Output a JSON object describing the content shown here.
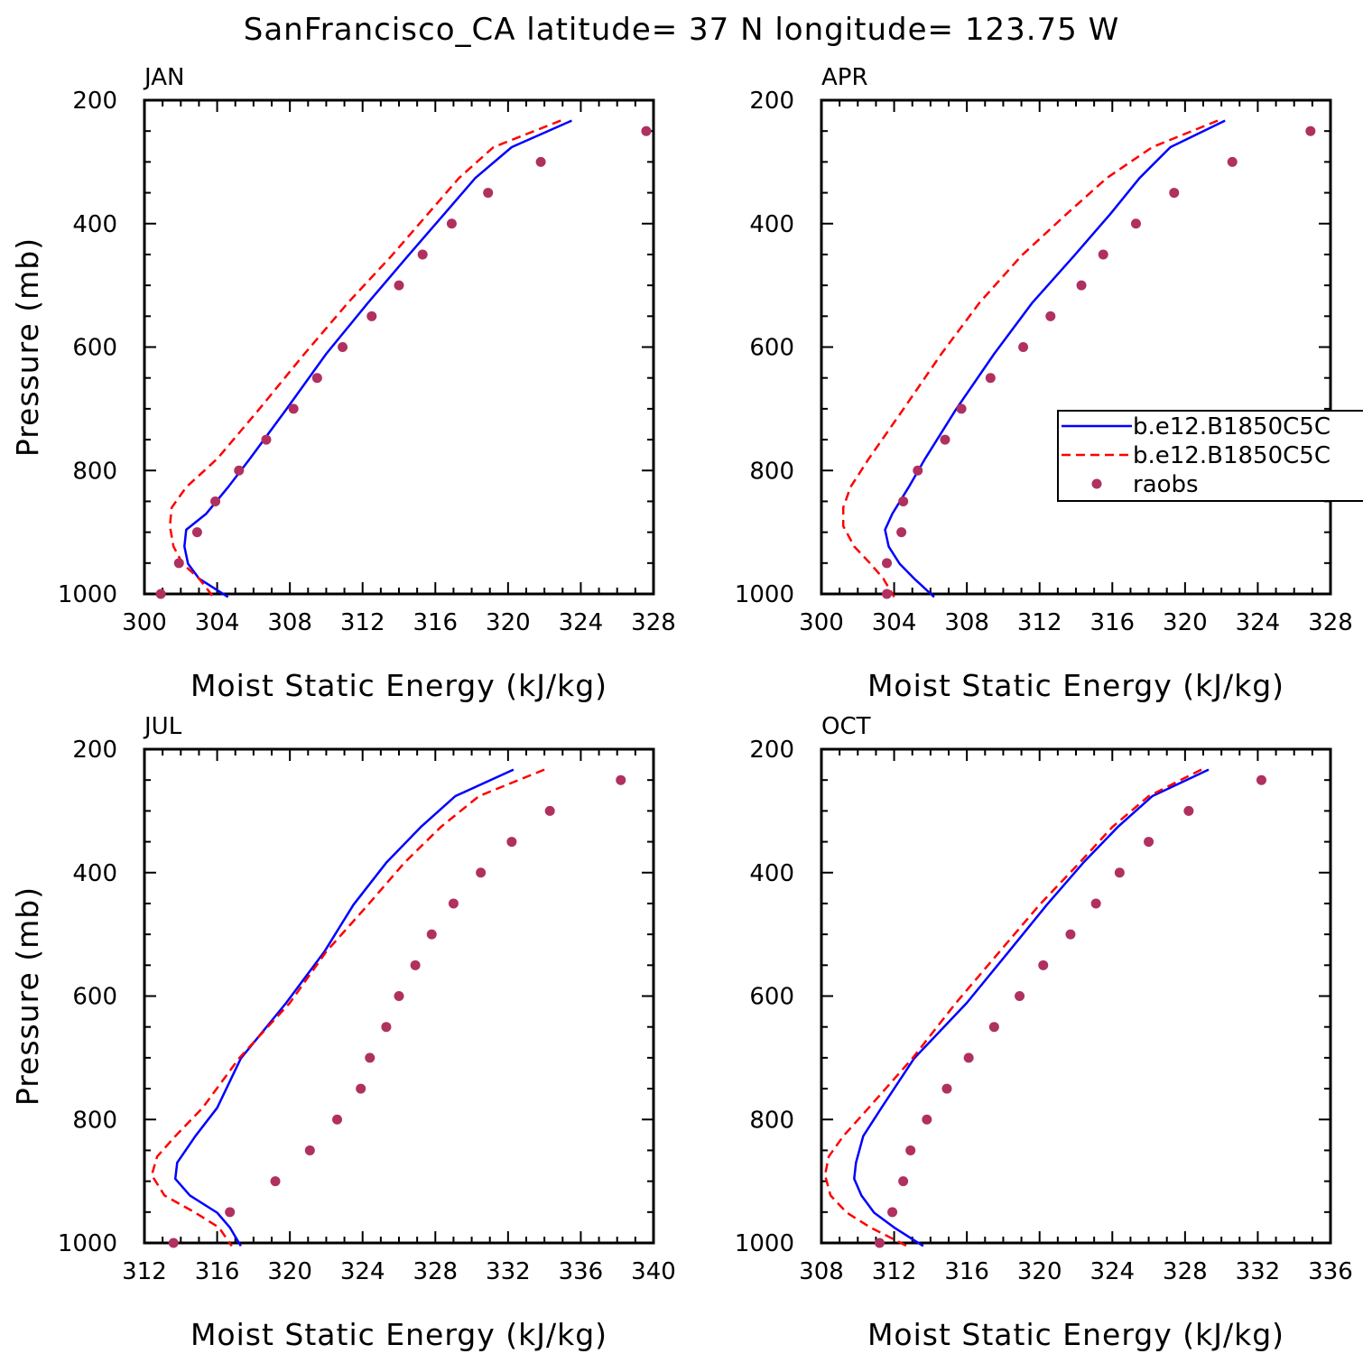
{
  "title": "SanFrancisco_CA  latitude= 37 N longitude= 123.75 W",
  "colors": {
    "model1": "#0000ff",
    "model2": "#ff0000",
    "raobs": "#b03060",
    "axes": "#000000"
  },
  "legend": {
    "entries": [
      {
        "label": "b.e12.B1850C5C",
        "style": "solid",
        "color": "#0000ff"
      },
      {
        "label": "b.e12.B1850C5C",
        "style": "dashed",
        "color": "#ff0000"
      },
      {
        "label": "raobs",
        "style": "marker",
        "color": "#b03060"
      }
    ]
  },
  "chart_data": [
    {
      "type": "line",
      "panel": "JAN",
      "xlabel": "Moist Static Energy (kJ/kg)",
      "ylabel": "Pressure (mb)",
      "xlim": [
        300,
        328
      ],
      "ylim": [
        1000,
        200
      ],
      "xticks": [
        300,
        304,
        308,
        312,
        316,
        320,
        324,
        328
      ],
      "yticks": [
        200,
        400,
        600,
        800,
        1000
      ],
      "series": [
        {
          "name": "b.e12.B1850C5C",
          "style": "solid",
          "x": [
            323.5,
            320.2,
            318.2,
            316.5,
            314.5,
            312.3,
            310.0,
            307.8,
            305.8,
            304.6,
            303.4,
            302.3,
            302.2,
            302.4,
            303.0,
            304.6
          ],
          "y": [
            233,
            276,
            326,
            384,
            452,
            528,
            611,
            701,
            781,
            827,
            870,
            896,
            923,
            951,
            975,
            1005
          ]
        },
        {
          "name": "b.e12.B1850C5C",
          "style": "dashed",
          "x": [
            322.9,
            319.2,
            317.3,
            315.6,
            313.6,
            311.2,
            308.8,
            306.3,
            304.0,
            302.3,
            301.5,
            301.4,
            301.6,
            302.1,
            303.0,
            303.8
          ],
          "y": [
            233,
            276,
            326,
            384,
            452,
            528,
            611,
            701,
            781,
            827,
            860,
            890,
            923,
            951,
            975,
            1005
          ]
        },
        {
          "name": "raobs",
          "style": "marker",
          "x": [
            327.6,
            321.8,
            318.9,
            316.9,
            315.3,
            314.0,
            312.5,
            310.9,
            309.5,
            308.2,
            306.7,
            305.2,
            303.9,
            302.9,
            301.9,
            300.9
          ],
          "y": [
            250,
            300,
            350,
            400,
            450,
            500,
            550,
            600,
            650,
            700,
            750,
            800,
            850,
            900,
            950,
            1000
          ]
        }
      ]
    },
    {
      "type": "line",
      "panel": "APR",
      "xlabel": "Moist Static Energy (kJ/kg)",
      "ylabel": "",
      "xlim": [
        300,
        328
      ],
      "ylim": [
        1000,
        200
      ],
      "xticks": [
        300,
        304,
        308,
        312,
        316,
        320,
        324,
        328
      ],
      "yticks": [
        200,
        400,
        600,
        800,
        1000
      ],
      "series": [
        {
          "name": "b.e12.B1850C5C",
          "style": "solid",
          "x": [
            322.2,
            319.2,
            317.5,
            315.9,
            313.9,
            311.6,
            309.5,
            307.4,
            305.7,
            304.8,
            303.9,
            303.5,
            303.7,
            304.3,
            305.1,
            306.2
          ],
          "y": [
            233,
            276,
            326,
            384,
            452,
            528,
            611,
            701,
            781,
            827,
            870,
            896,
            923,
            951,
            975,
            1005
          ]
        },
        {
          "name": "b.e12.B1850C5C",
          "style": "dashed",
          "x": [
            321.8,
            318.2,
            315.7,
            313.5,
            311.0,
            308.7,
            306.6,
            304.5,
            302.6,
            301.6,
            301.2,
            301.2,
            301.8,
            302.7,
            303.4,
            304.0
          ],
          "y": [
            233,
            276,
            326,
            384,
            452,
            528,
            611,
            701,
            781,
            827,
            860,
            890,
            923,
            951,
            975,
            1005
          ]
        },
        {
          "name": "raobs",
          "style": "marker",
          "x": [
            326.9,
            322.6,
            319.4,
            317.3,
            315.5,
            314.3,
            312.6,
            311.1,
            309.3,
            307.7,
            306.8,
            305.3,
            304.5,
            304.4,
            303.6,
            303.6
          ],
          "y": [
            250,
            300,
            350,
            400,
            450,
            500,
            550,
            600,
            650,
            700,
            750,
            800,
            850,
            900,
            950,
            1000
          ]
        }
      ]
    },
    {
      "type": "line",
      "panel": "JUL",
      "xlabel": "Moist Static Energy (kJ/kg)",
      "ylabel": "Pressure (mb)",
      "xlim": [
        312,
        340
      ],
      "ylim": [
        1000,
        200
      ],
      "xticks": [
        312,
        316,
        320,
        324,
        328,
        332,
        336,
        340
      ],
      "yticks": [
        200,
        400,
        600,
        800,
        1000
      ],
      "series": [
        {
          "name": "b.e12.B1850C5C",
          "style": "solid",
          "x": [
            332.3,
            329.1,
            327.2,
            325.3,
            323.5,
            321.9,
            319.8,
            317.3,
            316.0,
            314.8,
            313.8,
            313.7,
            314.5,
            316.0,
            316.7,
            317.3
          ],
          "y": [
            233,
            276,
            326,
            384,
            452,
            528,
            611,
            701,
            781,
            827,
            870,
            896,
            923,
            951,
            975,
            1005
          ]
        },
        {
          "name": "b.e12.B1850C5C",
          "style": "dashed",
          "x": [
            334.0,
            330.4,
            328.3,
            326.3,
            324.3,
            322.0,
            320.0,
            317.2,
            315.2,
            313.7,
            312.7,
            312.4,
            313.1,
            314.8,
            316.1,
            316.8
          ],
          "y": [
            233,
            276,
            326,
            384,
            452,
            528,
            611,
            701,
            781,
            827,
            860,
            890,
            923,
            951,
            975,
            1005
          ]
        },
        {
          "name": "raobs",
          "style": "marker",
          "x": [
            338.2,
            334.3,
            332.2,
            330.5,
            329.0,
            327.8,
            326.9,
            326.0,
            325.3,
            324.4,
            323.9,
            322.6,
            321.1,
            319.2,
            316.7,
            313.6
          ],
          "y": [
            250,
            300,
            350,
            400,
            450,
            500,
            550,
            600,
            650,
            700,
            750,
            800,
            850,
            900,
            950,
            1000
          ]
        }
      ]
    },
    {
      "type": "line",
      "panel": "OCT",
      "xlabel": "Moist Static Energy (kJ/kg)",
      "ylabel": "",
      "xlim": [
        308,
        336
      ],
      "ylim": [
        1000,
        200
      ],
      "xticks": [
        308,
        312,
        316,
        320,
        324,
        328,
        332,
        336
      ],
      "yticks": [
        200,
        400,
        600,
        800,
        1000
      ],
      "series": [
        {
          "name": "b.e12.B1850C5C",
          "style": "solid",
          "x": [
            329.3,
            326.2,
            324.3,
            322.4,
            320.4,
            318.3,
            316.0,
            313.1,
            311.3,
            310.3,
            309.9,
            309.8,
            310.2,
            310.9,
            312.0,
            313.6
          ],
          "y": [
            233,
            276,
            326,
            384,
            452,
            528,
            611,
            701,
            781,
            827,
            870,
            896,
            923,
            951,
            975,
            1005
          ]
        },
        {
          "name": "b.e12.B1850C5C",
          "style": "dashed",
          "x": [
            328.9,
            326.0,
            324.0,
            322.2,
            320.0,
            317.8,
            315.4,
            313.0,
            310.6,
            309.2,
            308.4,
            308.2,
            308.5,
            309.4,
            310.7,
            312.7
          ],
          "y": [
            233,
            276,
            326,
            384,
            452,
            528,
            611,
            701,
            781,
            827,
            860,
            890,
            923,
            951,
            975,
            1005
          ]
        },
        {
          "name": "raobs",
          "style": "marker",
          "x": [
            332.2,
            328.2,
            326.0,
            324.4,
            323.1,
            321.7,
            320.2,
            318.9,
            317.5,
            316.1,
            314.9,
            313.8,
            312.9,
            312.5,
            311.9,
            311.2
          ],
          "y": [
            250,
            300,
            350,
            400,
            450,
            500,
            550,
            600,
            650,
            700,
            750,
            800,
            850,
            900,
            950,
            1000
          ]
        }
      ]
    }
  ]
}
